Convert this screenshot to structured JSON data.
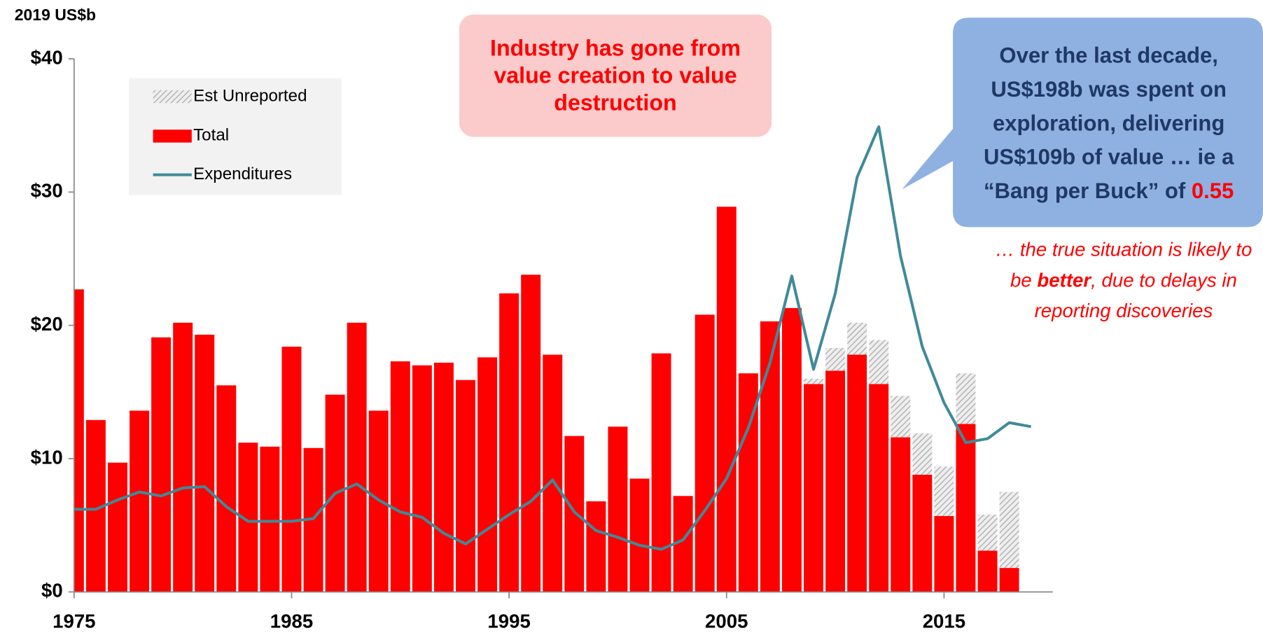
{
  "chart_data": {
    "type": "bar",
    "y_axis_label": "2019 US$b",
    "categories": [
      1975,
      1976,
      1977,
      1978,
      1979,
      1980,
      1981,
      1982,
      1983,
      1984,
      1985,
      1986,
      1987,
      1988,
      1989,
      1990,
      1991,
      1992,
      1993,
      1994,
      1995,
      1996,
      1997,
      1998,
      1999,
      2000,
      2001,
      2002,
      2003,
      2004,
      2005,
      2006,
      2007,
      2008,
      2009,
      2010,
      2011,
      2012,
      2013,
      2014,
      2015,
      2016,
      2017,
      2018,
      2019
    ],
    "series": [
      {
        "name": "Total",
        "color": "#ff0000",
        "values": [
          22.7,
          12.9,
          9.7,
          13.6,
          19.1,
          20.2,
          19.3,
          15.5,
          11.2,
          10.9,
          18.4,
          10.8,
          14.8,
          20.2,
          13.6,
          17.3,
          17.0,
          17.2,
          15.9,
          17.6,
          22.4,
          23.8,
          17.8,
          11.7,
          6.8,
          12.4,
          8.5,
          17.9,
          7.2,
          20.8,
          28.9,
          16.4,
          20.3,
          21.3,
          15.6,
          16.6,
          17.8,
          15.6,
          11.6,
          8.8,
          5.7,
          12.6,
          3.1,
          1.8,
          null
        ]
      },
      {
        "name": "Est Unreported",
        "color": "#bbbbbb",
        "values": [
          0,
          0,
          0,
          0,
          0,
          0,
          0,
          0,
          0,
          0,
          0,
          0,
          0,
          0,
          0,
          0,
          0,
          0,
          0,
          0,
          0,
          0,
          0,
          0,
          0,
          0,
          0,
          0,
          0,
          0,
          0,
          0,
          0,
          0,
          0.4,
          1.7,
          2.4,
          3.3,
          3.1,
          3.1,
          3.7,
          3.8,
          2.7,
          5.7,
          null
        ]
      },
      {
        "name": "Expenditures",
        "color": "#3f8a99",
        "type": "line",
        "values": [
          6.2,
          6.2,
          6.9,
          7.5,
          7.2,
          7.8,
          7.9,
          6.4,
          5.3,
          5.3,
          5.3,
          5.5,
          7.4,
          8.1,
          6.9,
          6.0,
          5.6,
          4.4,
          3.6,
          4.7,
          5.8,
          6.8,
          8.4,
          6.0,
          4.6,
          4.1,
          3.5,
          3.2,
          3.9,
          6.1,
          8.5,
          12.3,
          17.2,
          23.7,
          16.7,
          22.4,
          31.1,
          34.9,
          25.2,
          18.4,
          14.2,
          11.2,
          11.5,
          12.7,
          12.4
        ]
      }
    ],
    "xlim": [
      1975,
      2020
    ],
    "xticks": [
      1975,
      1985,
      1995,
      2005,
      2015
    ],
    "ylim": [
      0,
      40
    ],
    "yticks": [
      {
        "value": 0,
        "label": "$0"
      },
      {
        "value": 10,
        "label": "$10"
      },
      {
        "value": 20,
        "label": "$20"
      },
      {
        "value": 30,
        "label": "$30"
      },
      {
        "value": 40,
        "label": "$40"
      }
    ],
    "annotations": [
      {
        "text": "Industry has gone from value creation to value destruction"
      },
      {
        "text": "Over the  last decade, US$198b was spent on exploration, delivering US$109b of value … ie a “Bang per Buck” of ",
        "highlight": "0.55"
      },
      {
        "text": "… the true situation is likely to be ",
        "emphasis": "better",
        "text_after": ", due to delays in reporting discoveries"
      }
    ]
  }
}
